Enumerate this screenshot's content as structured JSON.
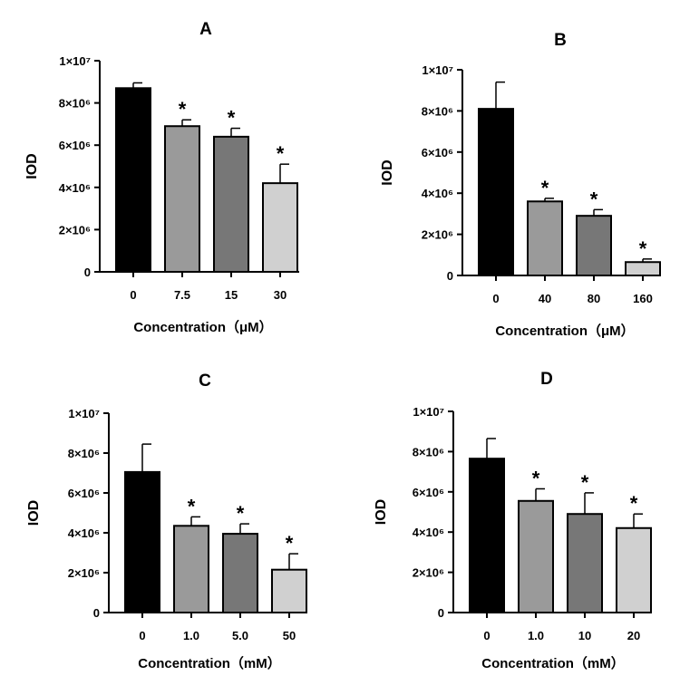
{
  "figure": {
    "panels_label": "IOD vs concentration, four panels"
  },
  "chart_data": [
    {
      "type": "bar",
      "title": "A",
      "ylabel": "IOD",
      "xlabel": "Concentration（μM）",
      "categories": [
        "0",
        "7.5",
        "15",
        "30"
      ],
      "values": [
        8700000,
        6900000,
        6400000,
        4200000
      ],
      "errors": [
        250000,
        300000,
        400000,
        900000
      ],
      "significant": [
        false,
        true,
        true,
        true
      ],
      "colors": [
        "#000000",
        "#9a9a9a",
        "#777777",
        "#d0d0d0"
      ],
      "ylim": [
        0,
        10000000
      ],
      "yticks": [
        0,
        2000000,
        4000000,
        6000000,
        8000000,
        10000000
      ],
      "ytick_labels": [
        "0",
        "2×10⁶",
        "4×10⁶",
        "6×10⁶",
        "8×10⁶",
        "1×10⁷"
      ]
    },
    {
      "type": "bar",
      "title": "B",
      "ylabel": "IOD",
      "xlabel": "Concentration（μM）",
      "categories": [
        "0",
        "40",
        "80",
        "160"
      ],
      "values": [
        8100000,
        3600000,
        2900000,
        650000
      ],
      "errors": [
        1300000,
        150000,
        300000,
        150000
      ],
      "significant": [
        false,
        true,
        true,
        true
      ],
      "colors": [
        "#000000",
        "#9a9a9a",
        "#777777",
        "#d0d0d0"
      ],
      "ylim": [
        0,
        10000000
      ],
      "yticks": [
        0,
        2000000,
        4000000,
        6000000,
        8000000,
        10000000
      ],
      "ytick_labels": [
        "0",
        "2×10⁶",
        "4×10⁶",
        "6×10⁶",
        "8×10⁶",
        "1×10⁷"
      ]
    },
    {
      "type": "bar",
      "title": "C",
      "ylabel": "IOD",
      "xlabel": "Concentration（mM）",
      "categories": [
        "0",
        "1.0",
        "5.0",
        "50"
      ],
      "values": [
        7050000,
        4350000,
        3950000,
        2150000
      ],
      "errors": [
        1400000,
        450000,
        500000,
        800000
      ],
      "significant": [
        false,
        true,
        true,
        true
      ],
      "colors": [
        "#000000",
        "#9a9a9a",
        "#777777",
        "#d0d0d0"
      ],
      "ylim": [
        0,
        10000000
      ],
      "yticks": [
        0,
        2000000,
        4000000,
        6000000,
        8000000,
        10000000
      ],
      "ytick_labels": [
        "0",
        "2×10⁶",
        "4×10⁶",
        "6×10⁶",
        "8×10⁶",
        "1×10⁷"
      ]
    },
    {
      "type": "bar",
      "title": "D",
      "ylabel": "IOD",
      "xlabel": "Concentration（mM）",
      "categories": [
        "0",
        "1.0",
        "10",
        "20"
      ],
      "values": [
        7650000,
        5550000,
        4900000,
        4200000
      ],
      "errors": [
        1000000,
        600000,
        1050000,
        700000
      ],
      "significant": [
        false,
        true,
        true,
        true
      ],
      "colors": [
        "#000000",
        "#9a9a9a",
        "#777777",
        "#d0d0d0"
      ],
      "ylim": [
        0,
        10000000
      ],
      "yticks": [
        0,
        2000000,
        4000000,
        6000000,
        8000000,
        10000000
      ],
      "ytick_labels": [
        "0",
        "2×10⁶",
        "4×10⁶",
        "6×10⁶",
        "8×10⁶",
        "1×10⁷"
      ]
    }
  ]
}
